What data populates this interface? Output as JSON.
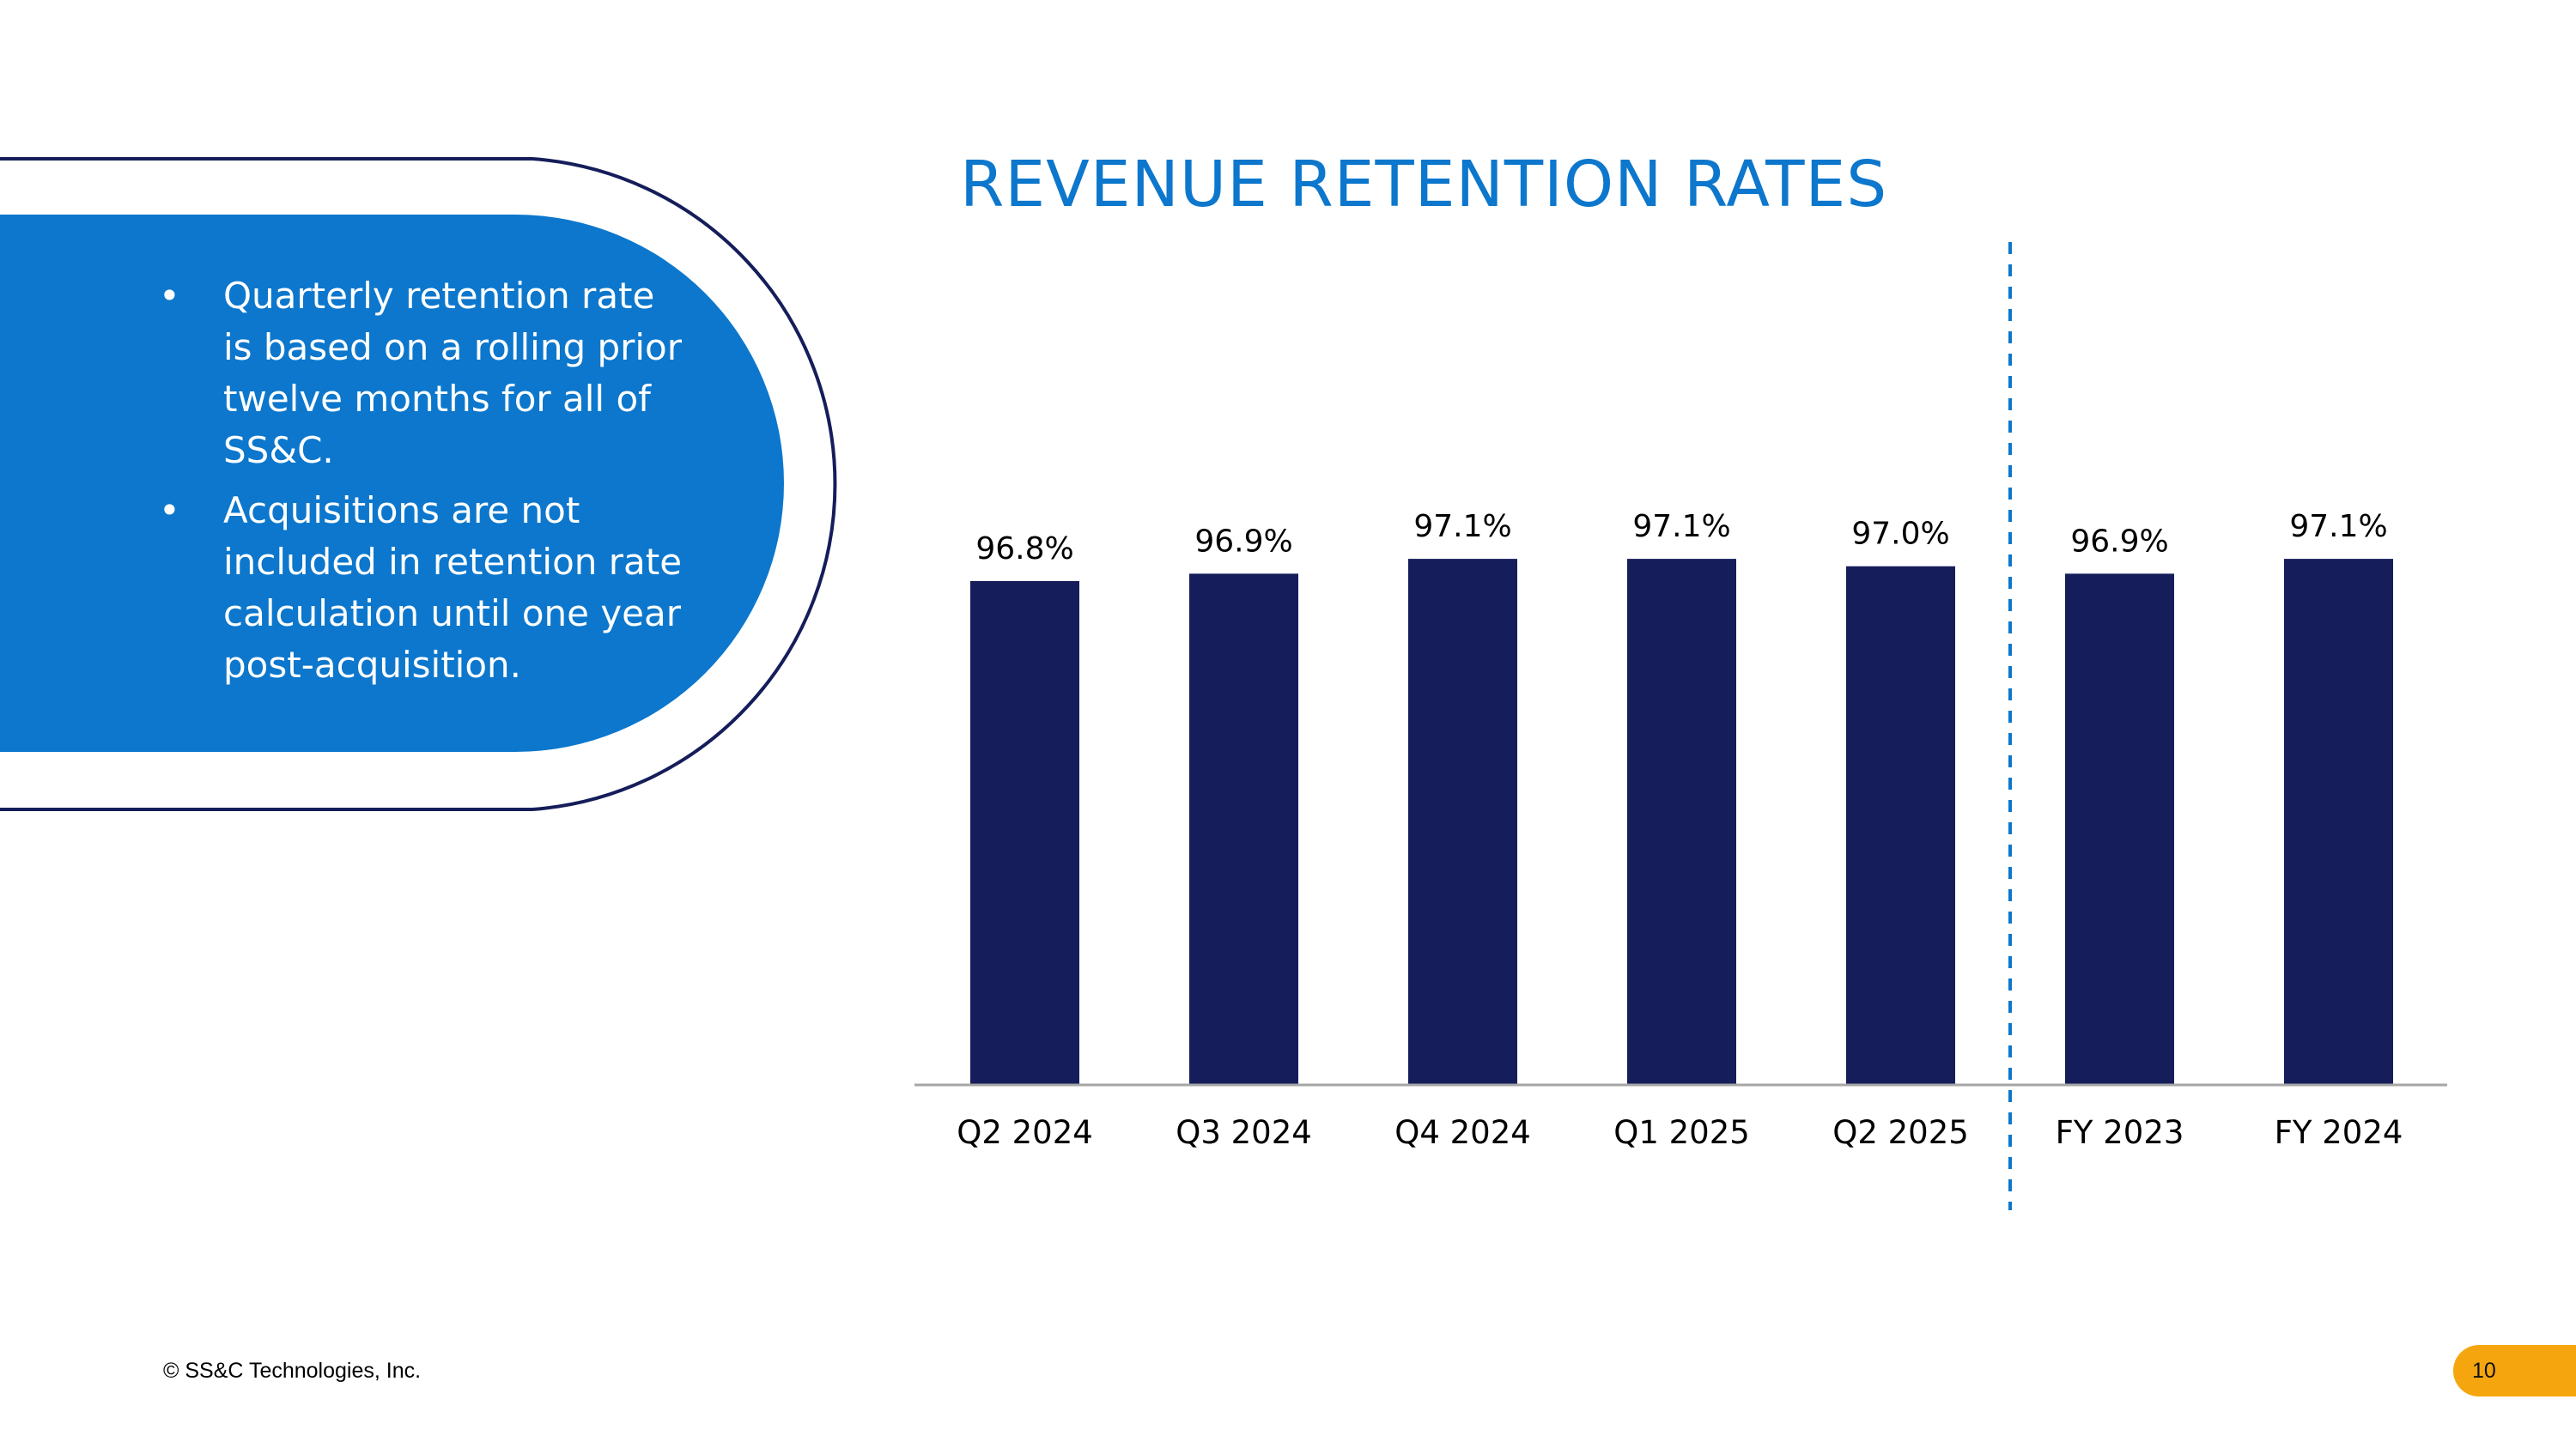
{
  "colors": {
    "accent_blue": "#0c77cc",
    "navy": "#151d5a",
    "badge": "#f5a60e"
  },
  "panel": {
    "bullets": [
      "Quarterly retention rate is based on a rolling prior twelve months for all of SS&C.",
      "Acquisitions are not included in retention rate calculation until one year post-acquisition."
    ],
    "bullet_glyph": "•"
  },
  "footer": {
    "copyright": "© SS&C Technologies, Inc.",
    "page_number": "10"
  },
  "chart_data": {
    "type": "bar",
    "title": "REVENUE RETENTION RATES",
    "categories": [
      "Q2 2024",
      "Q3 2024",
      "Q4 2024",
      "Q1 2025",
      "Q2 2025",
      "FY 2023",
      "FY 2024"
    ],
    "values": [
      96.8,
      96.9,
      97.1,
      97.1,
      97.0,
      96.9,
      97.1
    ],
    "data_labels": [
      "96.8%",
      "96.9%",
      "97.1%",
      "97.1%",
      "97.0%",
      "96.9%",
      "97.1%"
    ],
    "xlabel": "",
    "ylabel": "",
    "grid": false,
    "divider_after_category": "Q2 2025"
  }
}
